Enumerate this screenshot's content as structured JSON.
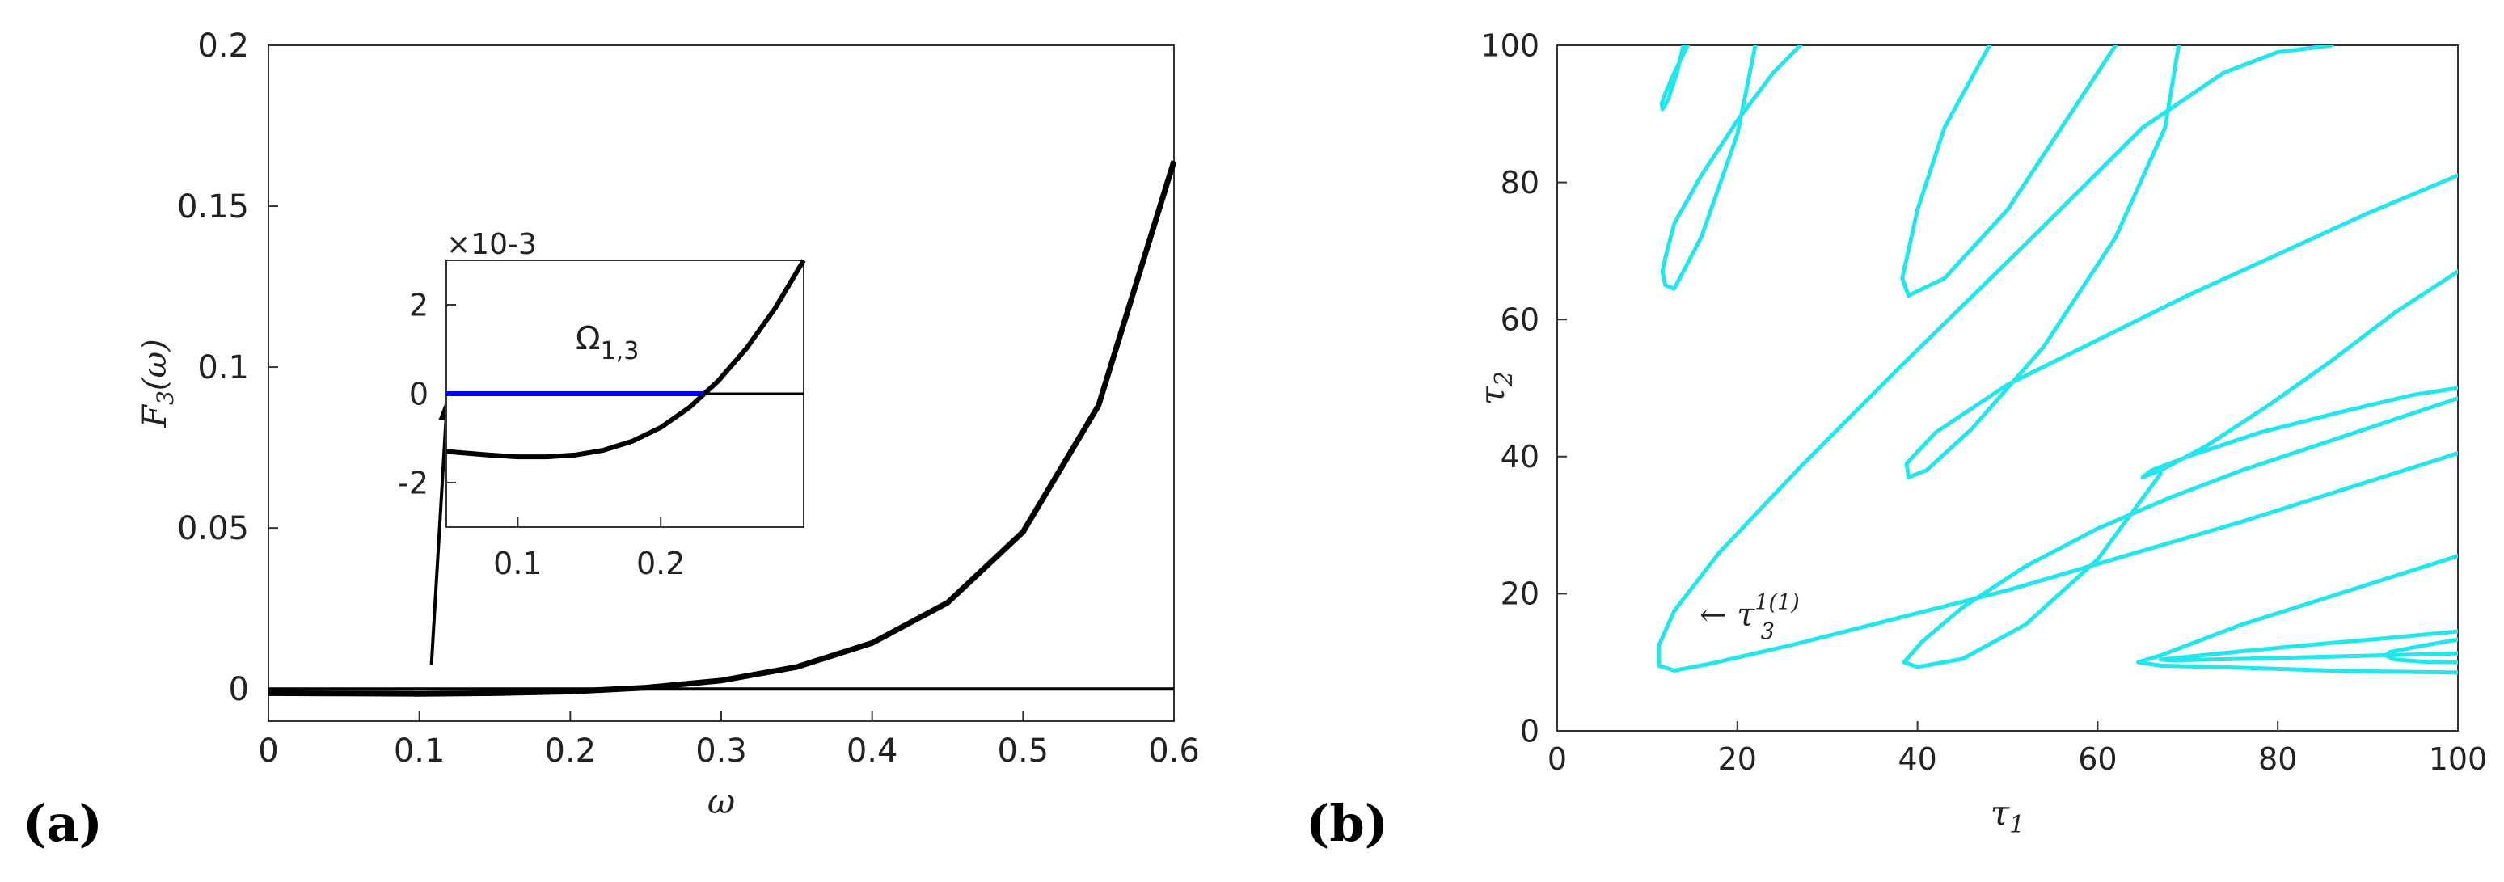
{
  "panels": {
    "a": {
      "label": "(a)"
    },
    "b": {
      "label": "(b)"
    }
  },
  "chart_data": [
    {
      "type": "line",
      "title": "",
      "xlabel": "ω",
      "ylabel": "F3(ω)",
      "xlim": [
        0,
        0.6
      ],
      "ylim": [
        -0.01,
        0.2
      ],
      "xticks": [
        "0",
        "0.1",
        "0.2",
        "0.3",
        "0.4",
        "0.5",
        "0.6"
      ],
      "yticks": [
        "0",
        "0.05",
        "0.1",
        "0.15",
        "0.2"
      ],
      "grid": false,
      "series": [
        {
          "name": "F3(omega)",
          "color": "#000000",
          "x": [
            0,
            0.05,
            0.1,
            0.15,
            0.2,
            0.25,
            0.3,
            0.35,
            0.4,
            0.45,
            0.5,
            0.55,
            0.6
          ],
          "y": [
            -0.0013,
            -0.0014,
            -0.0015,
            -0.0013,
            -0.0008,
            0.0004,
            0.0026,
            0.0068,
            0.0143,
            0.0268,
            0.0488,
            0.0881,
            0.164
          ]
        },
        {
          "name": "zero-line",
          "color": "#000000",
          "x": [
            0,
            0.6
          ],
          "y": [
            0,
            0
          ]
        }
      ],
      "annotation": {
        "type": "arrow",
        "from": [
          0.108,
          0.0075
        ],
        "to": [
          0.118,
          0.09
        ]
      },
      "inset": {
        "xlim": [
          0.05,
          0.3
        ],
        "ylim": [
          -3,
          3
        ],
        "scale_label": "×10-3",
        "xticks": [
          "0.1",
          "0.2"
        ],
        "yticks": [
          "2",
          "0",
          "-2"
        ],
        "label": "Ω",
        "label_sub": "1,3",
        "series": [
          {
            "name": "F3 zoom",
            "color": "#000000",
            "x": [
              0.05,
              0.08,
              0.1,
              0.12,
              0.14,
              0.16,
              0.18,
              0.2,
              0.22,
              0.24,
              0.26,
              0.28,
              0.3
            ],
            "y": [
              -1.3,
              -1.38,
              -1.42,
              -1.42,
              -1.38,
              -1.27,
              -1.07,
              -0.76,
              -0.31,
              0.28,
              1.02,
              1.92,
              3.0
            ]
          },
          {
            "name": "Omega_1,3 interval",
            "color": "#0000ff",
            "x": [
              0.05,
              0.23
            ],
            "y": [
              0,
              0
            ]
          },
          {
            "name": "zero-line",
            "color": "#000000",
            "x": [
              0.23,
              0.3
            ],
            "y": [
              0,
              0
            ]
          }
        ]
      }
    },
    {
      "type": "line",
      "title": "",
      "xlabel": "τ1",
      "ylabel": "τ2",
      "xlim": [
        0,
        100
      ],
      "ylim": [
        0,
        100
      ],
      "xticks": [
        "0",
        "20",
        "40",
        "60",
        "80",
        "100"
      ],
      "yticks": [
        "0",
        "20",
        "40",
        "60",
        "80",
        "100"
      ],
      "grid": false,
      "color": "#22e6ec",
      "annotation": {
        "text": "← τ",
        "sub": "3",
        "sup": "1(1)",
        "at": [
          16,
          16.5
        ]
      },
      "series": [
        {
          "name": "branch-1",
          "x": [
            100,
            88,
            76,
            63,
            50,
            38,
            26,
            17,
            13,
            11.3,
            11.3,
            13,
            18,
            27,
            38,
            52,
            65,
            74,
            80,
            86
          ],
          "y": [
            40.5,
            35.5,
            30.5,
            25.5,
            20.5,
            16.5,
            12.5,
            9.8,
            8.8,
            9.5,
            12.5,
            17.5,
            26,
            38.5,
            53,
            71,
            88,
            96,
            99,
            100
          ]
        },
        {
          "name": "branch-2",
          "x": [
            27,
            24,
            20,
            16,
            13,
            12,
            11.7,
            12,
            13,
            16,
            20,
            22
          ],
          "y": [
            100,
            96,
            89,
            81,
            74,
            69,
            67,
            65,
            64.5,
            72,
            87,
            100
          ]
        },
        {
          "name": "branch-3",
          "x": [
            14.5,
            13,
            12,
            11.6,
            11.7,
            12.3,
            13.3,
            14
          ],
          "y": [
            100,
            96,
            93,
            91.5,
            90.7,
            92,
            96,
            100
          ]
        },
        {
          "name": "branch-4",
          "x": [
            100,
            90,
            80,
            70,
            60,
            50,
            42,
            38.8,
            39,
            41,
            46,
            54,
            62,
            67.5,
            69
          ],
          "y": [
            81,
            75.5,
            69.5,
            63.5,
            57,
            50.5,
            43.5,
            39,
            37,
            38,
            44,
            56,
            72,
            88,
            100
          ]
        },
        {
          "name": "branch-5",
          "x": [
            100,
            92,
            84,
            76,
            68,
            60,
            52,
            45,
            40.5,
            38.5,
            40,
            45,
            52,
            60,
            67
          ],
          "y": [
            48.5,
            45,
            41.5,
            38,
            34,
            29.5,
            24,
            18,
            13,
            10,
            9.3,
            10.5,
            15.5,
            25,
            37.5
          ]
        },
        {
          "name": "branch-6",
          "x": [
            48,
            43,
            40,
            38.3,
            39,
            43,
            50,
            57,
            62
          ],
          "y": [
            100,
            88,
            76,
            66,
            63.5,
            66,
            76,
            90,
            100
          ]
        },
        {
          "name": "branch-7",
          "x": [
            100,
            93,
            86,
            79,
            72,
            67,
            65,
            66,
            70,
            78,
            87,
            95,
            100
          ],
          "y": [
            67,
            61,
            54,
            47.5,
            41.5,
            38,
            37,
            38,
            40,
            43.5,
            46.5,
            49,
            50
          ]
        },
        {
          "name": "branch-8",
          "x": [
            100,
            88,
            76,
            67,
            64.5,
            67,
            76,
            88,
            100
          ],
          "y": [
            25.5,
            20.5,
            15.5,
            11,
            10,
            9.5,
            9.2,
            8.7,
            8.5
          ]
        },
        {
          "name": "branch-9",
          "x": [
            100,
            92,
            84,
            76,
            70,
            67,
            68,
            76,
            88,
            100
          ],
          "y": [
            14.5,
            13.5,
            12.6,
            11.6,
            10.8,
            10.4,
            10.3,
            10.5,
            10.9,
            11.3
          ]
        },
        {
          "name": "branch-10",
          "x": [
            100,
            96,
            92.5,
            92,
            93,
            96,
            100
          ],
          "y": [
            13.3,
            12.4,
            11.5,
            11,
            10.4,
            10.1,
            10
          ]
        }
      ]
    }
  ]
}
